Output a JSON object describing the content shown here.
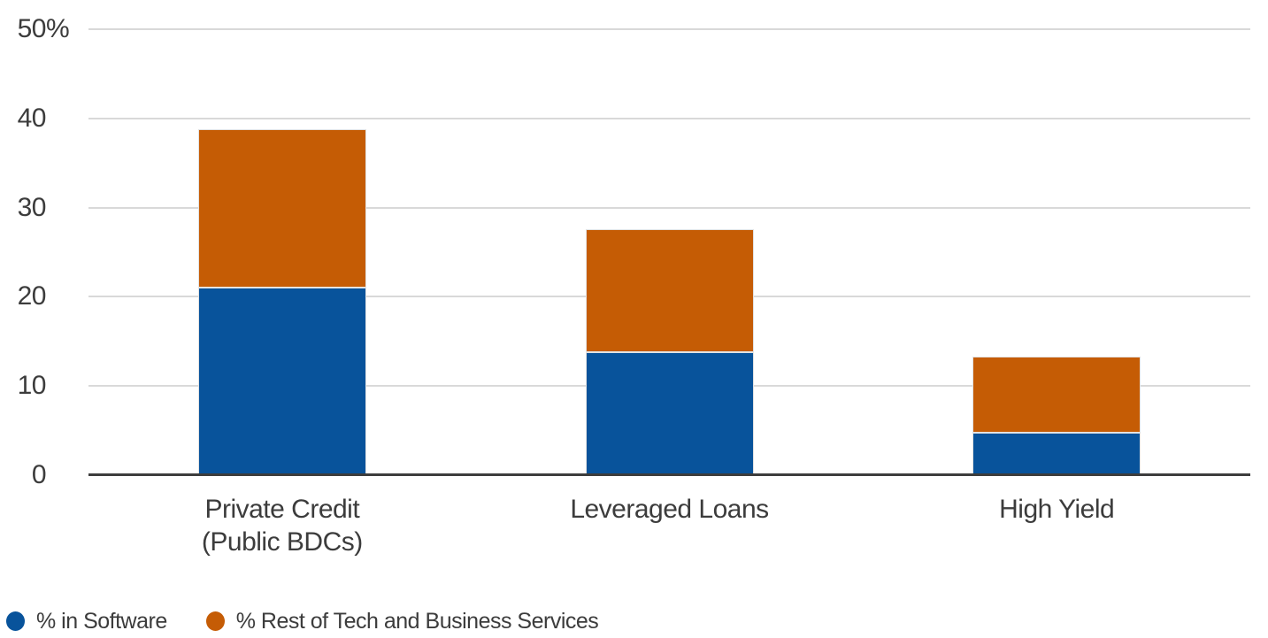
{
  "chart_data": {
    "type": "bar",
    "stacked": true,
    "grid": "horizontal",
    "legend_position": "bottom-left",
    "ylim": [
      0,
      50
    ],
    "yticks": [
      {
        "value": 50,
        "label": "50",
        "suffix": "%"
      },
      {
        "value": 40,
        "label": "40",
        "suffix": ""
      },
      {
        "value": 30,
        "label": "30",
        "suffix": ""
      },
      {
        "value": 20,
        "label": "20",
        "suffix": ""
      },
      {
        "value": 10,
        "label": "10",
        "suffix": ""
      },
      {
        "value": 0,
        "label": "0",
        "suffix": ""
      }
    ],
    "categories": [
      {
        "lines": [
          "Private Credit",
          "(Public BDCs)"
        ]
      },
      {
        "lines": [
          "Leveraged Loans"
        ]
      },
      {
        "lines": [
          "High Yield"
        ]
      }
    ],
    "series": [
      {
        "name": "% in Software",
        "color": "#08539B",
        "values": [
          21.0,
          13.8,
          4.8
        ]
      },
      {
        "name": "% Rest of Tech and Business Services",
        "color": "#C55C05",
        "values": [
          17.8,
          13.8,
          8.5
        ]
      }
    ],
    "totals": [
      38.8,
      27.6,
      13.3
    ]
  },
  "colors": {
    "grid": "#D9D9D9",
    "baseline": "#3D3D3D",
    "text": "#3C3C3C",
    "background": "#FFFFFF"
  }
}
